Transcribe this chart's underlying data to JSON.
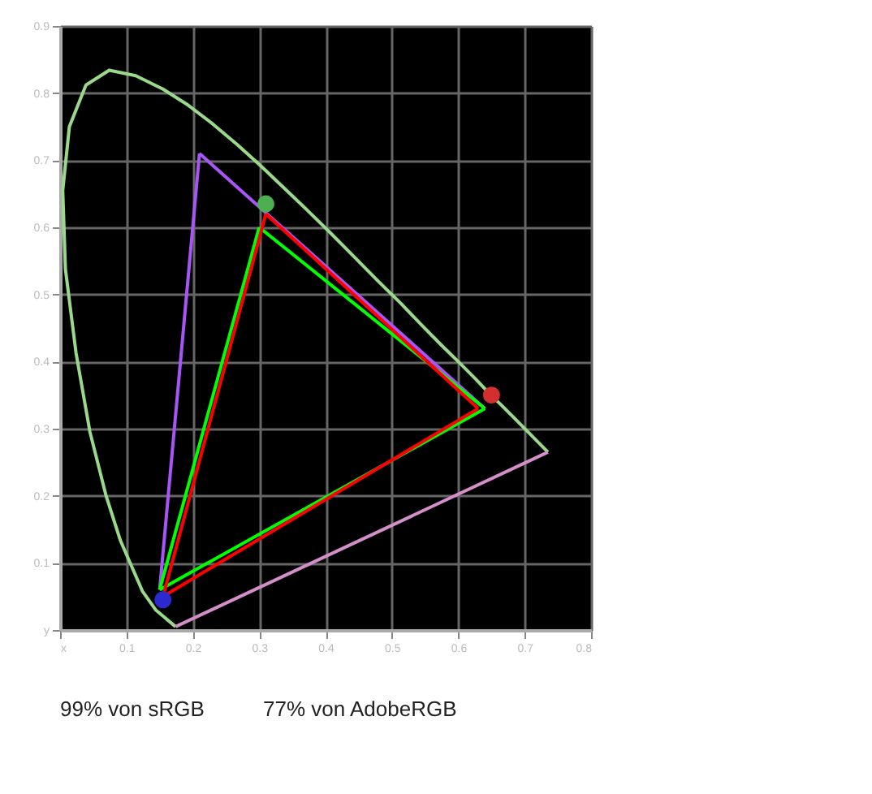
{
  "chart_data": {
    "type": "line",
    "xlim": [
      0,
      0.8
    ],
    "ylim": [
      0,
      0.9
    ],
    "xticks": [
      {
        "value": 0,
        "label": "x"
      },
      0.1,
      0.2,
      0.3,
      0.4,
      0.5,
      0.6,
      0.7,
      0.8
    ],
    "yticks": [
      {
        "value": 0,
        "label": "y"
      },
      0.1,
      0.2,
      0.3,
      0.4,
      0.5,
      0.6,
      0.7,
      0.8,
      0.9
    ],
    "grid": true,
    "marker": "none",
    "line_style": "solid",
    "series": [
      {
        "color": "#9ad98a",
        "x": [
          0.174,
          0.144,
          0.124,
          0.091,
          0.069,
          0.045,
          0.024,
          0.008,
          0.004,
          0.014,
          0.039,
          0.074,
          0.114,
          0.155,
          0.193,
          0.23,
          0.266,
          0.302,
          0.337,
          0.373,
          0.409,
          0.444,
          0.479,
          0.513,
          0.545,
          0.575,
          0.603,
          0.627,
          0.648,
          0.666,
          0.68,
          0.735
        ],
        "values": [
          0.005,
          0.03,
          0.058,
          0.133,
          0.201,
          0.295,
          0.413,
          0.538,
          0.655,
          0.75,
          0.812,
          0.834,
          0.826,
          0.806,
          0.782,
          0.754,
          0.724,
          0.692,
          0.659,
          0.625,
          0.59,
          0.555,
          0.52,
          0.487,
          0.454,
          0.424,
          0.397,
          0.373,
          0.351,
          0.334,
          0.32,
          0.265
        ]
      },
      {
        "color": "#d38fc8",
        "x": [
          0.174,
          0.735
        ],
        "values": [
          0.005,
          0.265
        ]
      },
      {
        "color": "#a855f7",
        "x": [
          0.21,
          0.64
        ],
        "values": [
          0.71,
          0.33
        ]
      },
      {
        "color": "#a855f7",
        "x": [
          0.15,
          0.21
        ],
        "values": [
          0.06,
          0.71
        ]
      },
      {
        "color": "#00ff00",
        "x": [
          0.3,
          0.64
        ],
        "values": [
          0.6,
          0.33
        ]
      },
      {
        "color": "#00ff00",
        "x": [
          0.15,
          0.64
        ],
        "values": [
          0.06,
          0.33
        ]
      },
      {
        "color": "#00ff00",
        "x": [
          0.15,
          0.3
        ],
        "values": [
          0.06,
          0.6
        ]
      },
      {
        "color": "#ff0000",
        "x": [
          0.31,
          0.63
        ],
        "values": [
          0.62,
          0.33
        ]
      },
      {
        "color": "#ff0000",
        "x": [
          0.155,
          0.63
        ],
        "values": [
          0.05,
          0.33
        ]
      },
      {
        "color": "#ff0000",
        "x": [
          0.155,
          0.31
        ],
        "values": [
          0.05,
          0.62
        ]
      },
      {
        "type": "scatter",
        "marker": "circle",
        "colors": [
          "#4caf50",
          "#d32f2f",
          "#2a2ad0"
        ],
        "x": [
          0.31,
          0.65,
          0.155
        ],
        "values": [
          0.635,
          0.35,
          0.045
        ]
      }
    ],
    "annotations": [
      "99% von sRGB",
      "77% von AdobeRGB"
    ]
  }
}
